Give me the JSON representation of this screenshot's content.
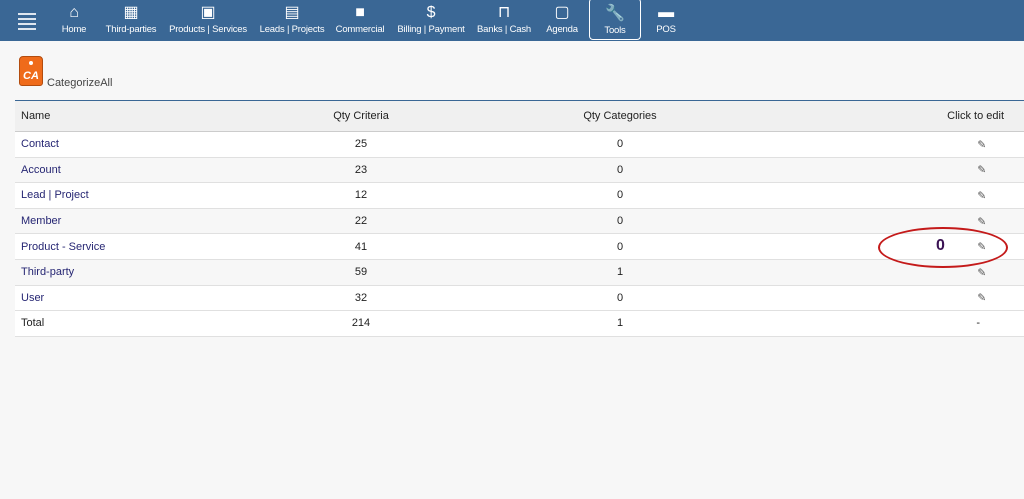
{
  "nav": {
    "items": [
      {
        "label": "Home",
        "icon": "home-icon",
        "glyph": "⌂"
      },
      {
        "label": "Third-parties",
        "icon": "building-icon",
        "glyph": "▦"
      },
      {
        "label": "Products | Services",
        "icon": "image-icon",
        "glyph": "▣"
      },
      {
        "label": "Leads | Projects",
        "icon": "clipboard-icon",
        "glyph": "▤"
      },
      {
        "label": "Commercial",
        "icon": "briefcase-icon",
        "glyph": "■"
      },
      {
        "label": "Billing | Payment",
        "icon": "dollar-icon",
        "glyph": "$"
      },
      {
        "label": "Banks | Cash",
        "icon": "bank-icon",
        "glyph": "⊓"
      },
      {
        "label": "Agenda",
        "icon": "calendar-icon",
        "glyph": "▢"
      },
      {
        "label": "Tools",
        "icon": "wrench-icon",
        "glyph": "🔧"
      },
      {
        "label": "POS",
        "icon": "store-icon",
        "glyph": "▬"
      }
    ],
    "active": "Tools"
  },
  "app": {
    "logo_text": "CA",
    "title": "CategorizeAll"
  },
  "table": {
    "headers": [
      "Name",
      "Qty Criteria",
      "Qty Categories",
      "Click to edit"
    ],
    "rows": [
      {
        "name": "Contact",
        "criteria": "25",
        "categories": "0"
      },
      {
        "name": "Account",
        "criteria": "23",
        "categories": "0"
      },
      {
        "name": "Lead | Project",
        "criteria": "12",
        "categories": "0"
      },
      {
        "name": "Member",
        "criteria": "22",
        "categories": "0"
      },
      {
        "name": "Product - Service",
        "criteria": "41",
        "categories": "0"
      },
      {
        "name": "Third-party",
        "criteria": "59",
        "categories": "1"
      },
      {
        "name": "User",
        "criteria": "32",
        "categories": "0"
      }
    ],
    "total": {
      "name": "Total",
      "criteria": "214",
      "categories": "1",
      "edit": "-"
    }
  },
  "annotation": {
    "value": "0",
    "color": "#c41a1a"
  }
}
